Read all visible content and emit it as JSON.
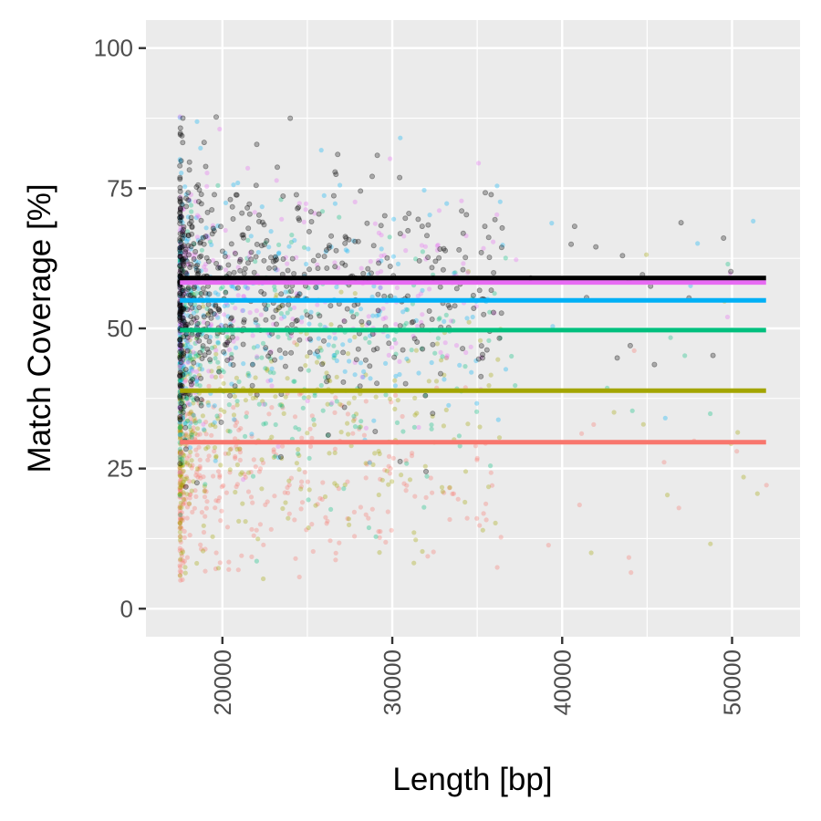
{
  "chart_data": {
    "type": "scatter",
    "title": "",
    "xlabel": "Length [bp]",
    "ylabel": "Match Coverage [%]",
    "xlim": [
      15500,
      54000
    ],
    "ylim": [
      -5,
      105
    ],
    "x_ticks": [
      20000,
      30000,
      40000,
      50000
    ],
    "x_tick_labels": [
      "20000",
      "30000",
      "40000",
      "50000"
    ],
    "y_ticks": [
      0,
      25,
      50,
      75,
      100
    ],
    "y_tick_labels": [
      "0",
      "25",
      "50",
      "75",
      "100"
    ],
    "grid": true,
    "legend": "none",
    "panel_background": "#ebebeb",
    "series": [
      {
        "color": "#f8766d",
        "mean": 29.7,
        "x_range": [
          17500,
          52000
        ],
        "center": 24,
        "spread": 9
      },
      {
        "color": "#a3a500",
        "mean": 38.9,
        "x_range": [
          17500,
          52000
        ],
        "center": 33,
        "spread": 11
      },
      {
        "color": "#00bf7d",
        "mean": 49.7,
        "x_range": [
          17500,
          52000
        ],
        "center": 46,
        "spread": 12
      },
      {
        "color": "#00b0f6",
        "mean": 55.0,
        "x_range": [
          17500,
          52000
        ],
        "center": 52,
        "spread": 12
      },
      {
        "color": "#e76bf3",
        "mean": 58.2,
        "x_range": [
          17500,
          52000
        ],
        "center": 56,
        "spread": 11
      },
      {
        "color": "#000000",
        "mean": 59.0,
        "x_range": [
          17500,
          52000
        ],
        "center": 57,
        "spread": 11
      }
    ]
  }
}
